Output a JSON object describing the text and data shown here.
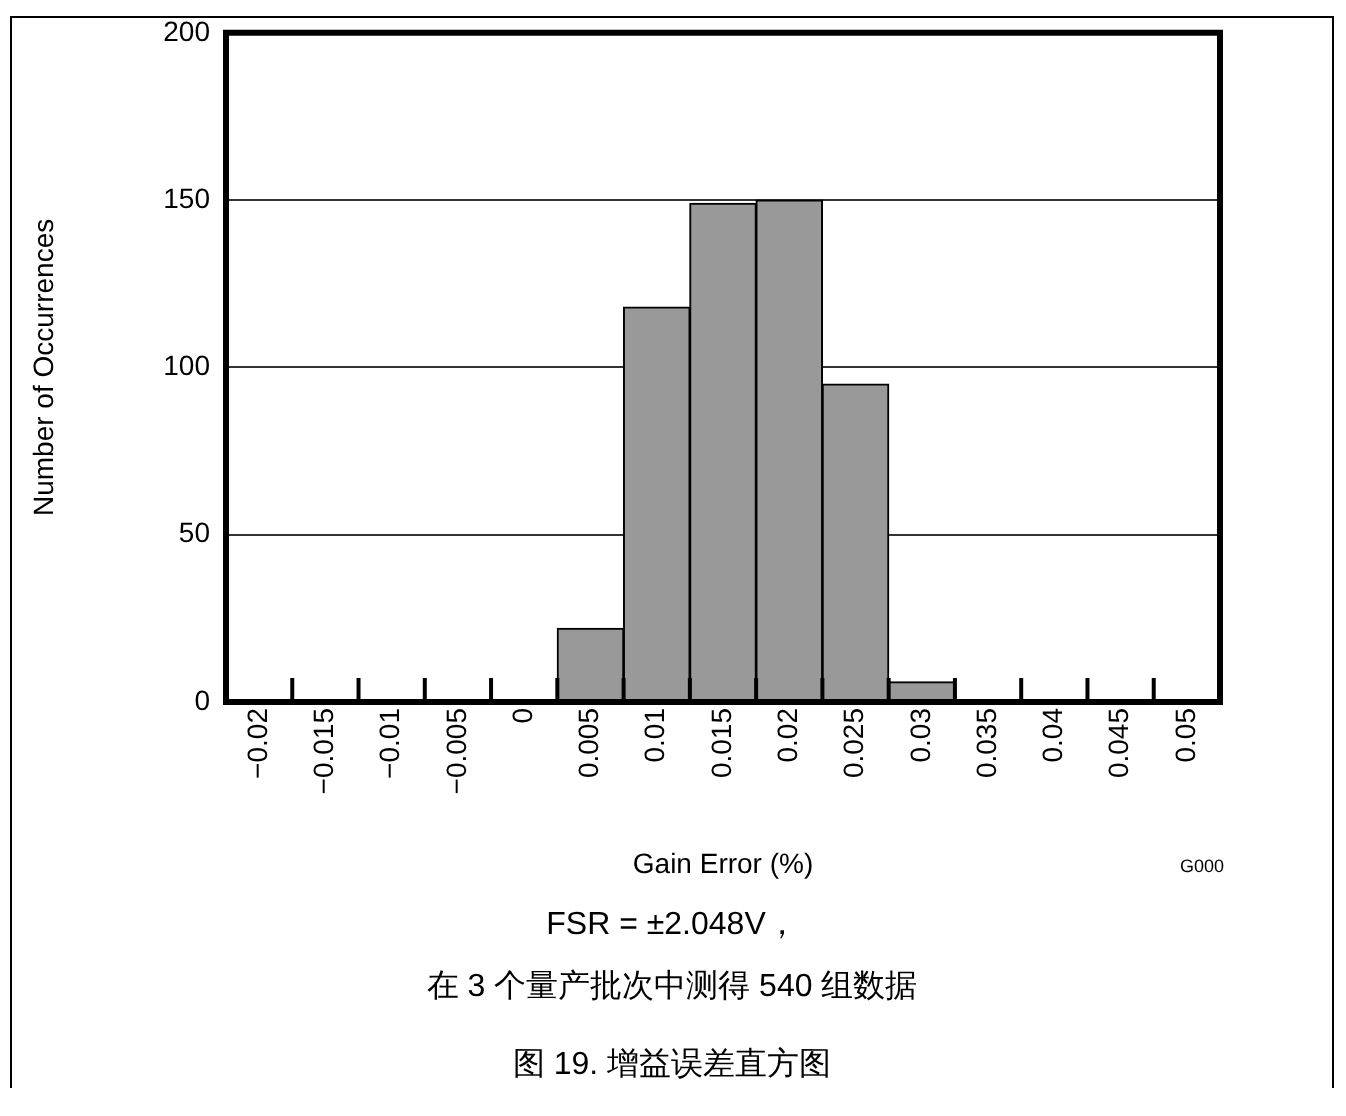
{
  "chart_data": {
    "type": "histogram",
    "xlabel": "Gain Error (%)",
    "ylabel": "Number of Occurrences",
    "bins": [
      -0.0225,
      -0.0175,
      -0.0125,
      -0.0075,
      -0.0025,
      0.0025,
      0.0075,
      0.0125,
      0.0175,
      0.0225,
      0.0275,
      0.0325,
      0.0375,
      0.0425,
      0.0475,
      0.0525
    ],
    "values": [
      0,
      0,
      0,
      0,
      0,
      22,
      118,
      149,
      150,
      95,
      6,
      0,
      0,
      0,
      0
    ],
    "color": "#999999",
    "xlim": [
      -0.0225,
      0.0525
    ],
    "xticks": [
      {
        "value": -0.0175,
        "label": null
      },
      {
        "value": -0.0125,
        "label": null
      },
      {
        "value": -0.0075,
        "label": null
      },
      {
        "value": -0.0025,
        "label": null
      },
      {
        "value": 0.0025,
        "label": null
      },
      {
        "value": 0.0075,
        "label": null
      },
      {
        "value": 0.0125,
        "label": null
      },
      {
        "value": 0.0175,
        "label": null
      },
      {
        "value": 0.0225,
        "label": null
      },
      {
        "value": 0.0275,
        "label": null
      },
      {
        "value": 0.0325,
        "label": null
      },
      {
        "value": 0.0375,
        "label": null
      },
      {
        "value": 0.0425,
        "label": null
      },
      {
        "value": 0.0475,
        "label": null
      },
      {
        "value": -0.02,
        "label": "−0.02"
      },
      {
        "value": -0.015,
        "label": "−0.015"
      },
      {
        "value": -0.01,
        "label": "−0.01"
      },
      {
        "value": -0.005,
        "label": "−0.005"
      },
      {
        "value": 0,
        "label": "0"
      },
      {
        "value": 0.005,
        "label": "0.005"
      },
      {
        "value": 0.01,
        "label": "0.01"
      },
      {
        "value": 0.015,
        "label": "0.015"
      },
      {
        "value": 0.02,
        "label": "0.02"
      },
      {
        "value": 0.025,
        "label": "0.025"
      },
      {
        "value": 0.03,
        "label": "0.03"
      },
      {
        "value": 0.035,
        "label": "0.035"
      },
      {
        "value": 0.04,
        "label": "0.04"
      },
      {
        "value": 0.045,
        "label": "0.045"
      },
      {
        "value": 0.05,
        "label": "0.05"
      }
    ],
    "ylim": [
      0,
      200
    ],
    "yticks": [
      0,
      50,
      100,
      150,
      200
    ],
    "grid": "y",
    "annotations": [
      "G000",
      "FSR = ±2.048V，",
      "在 3 个量产批次中测得 540 组数据",
      "图 19. 增益误差直方图"
    ]
  }
}
